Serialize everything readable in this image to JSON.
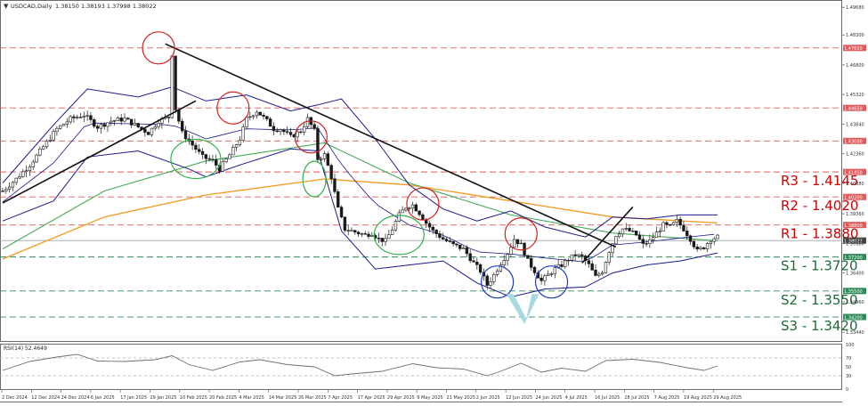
{
  "header": {
    "symbol": "USDCAD,Daily",
    "ohlc": "1.38150 1.38193 1.37998 1.38022"
  },
  "colors": {
    "hline": "#e05a5a",
    "support": "#2e8b57",
    "bb": "#1a1a8c",
    "ma_green": "#44aa55",
    "ma_orange": "#f39a1e",
    "trend": "#111111",
    "circle_red": "#d62020",
    "circle_green": "#32b04b",
    "circle_blue": "#1a3acc",
    "arrow": "#a8d8e0",
    "price_line": "#9aa4aa",
    "candle": "#1a1a1a",
    "rsi_line": "#707070"
  },
  "price_axis": {
    "min": 1.33,
    "max": 1.5,
    "ticks": [
      "1.49680",
      "1.48300",
      "1.46800",
      "1.45320",
      "1.43840",
      "1.42360",
      "1.40880",
      "1.39360",
      "1.37880",
      "1.36400",
      "1.34960",
      "1.33440"
    ],
    "current": "1.38022"
  },
  "levels": [
    {
      "value": 1.4765,
      "tag": "1.47650",
      "kind": "res"
    },
    {
      "value": 1.4465,
      "tag": "1.44650",
      "kind": "res"
    },
    {
      "value": 1.43,
      "tag": "1.43000",
      "kind": "res"
    },
    {
      "value": 1.4145,
      "tag": "1.41450",
      "kind": "res",
      "label": "R3 - 1.4145"
    },
    {
      "value": 1.402,
      "tag": "1.40200",
      "kind": "res",
      "label": "R2 - 1.4020"
    },
    {
      "value": 1.388,
      "tag": "1.38800",
      "kind": "res",
      "label": "R1 - 1.3880"
    },
    {
      "value": 1.372,
      "tag": "1.37200",
      "kind": "sup",
      "label": "S1 - 1.3720"
    },
    {
      "value": 1.355,
      "tag": "1.35500",
      "kind": "sup",
      "label": "S2 - 1.3550"
    },
    {
      "value": 1.342,
      "tag": "1.34200",
      "kind": "sup",
      "label": "S3 - 1.3420"
    }
  ],
  "rsi": {
    "label": "RSI(14) 52.4649",
    "ticks": [
      "100",
      "70",
      "50",
      "30",
      "0"
    ]
  },
  "x_axis": {
    "labels": [
      "2 Dec 2024",
      "12 Dec 2024",
      "24 Dec 2024",
      "6 Jan 2025",
      "17 Jan 2025",
      "29 Jan 2025",
      "10 Feb 2025",
      "20 Feb 2025",
      "4 Mar 2025",
      "14 Mar 2025",
      "26 Mar 2025",
      "7 Apr 2025",
      "17 Apr 2025",
      "29 Apr 2025",
      "9 May 2025",
      "21 May 2025",
      "2 Jun 2025",
      "12 Jun 2025",
      "24 Jun 2025",
      "4 Jul 2025",
      "16 Jul 2025",
      "28 Jul 2025",
      "7 Aug 2025",
      "19 Aug 2025",
      "29 Aug 2025"
    ]
  },
  "chart_data": {
    "type": "candlestick",
    "title": "USDCAD,Daily",
    "close_path": [
      [
        0,
        1.405
      ],
      [
        4,
        1.411
      ],
      [
        8,
        1.418
      ],
      [
        12,
        1.427
      ],
      [
        16,
        1.436
      ],
      [
        20,
        1.441
      ],
      [
        24,
        1.443
      ],
      [
        28,
        1.437
      ],
      [
        32,
        1.44
      ],
      [
        36,
        1.441
      ],
      [
        40,
        1.437
      ],
      [
        43,
        1.434
      ],
      [
        46,
        1.44
      ],
      [
        49,
        1.442
      ],
      [
        50,
        1.4735
      ],
      [
        51,
        1.446
      ],
      [
        53,
        1.434
      ],
      [
        56,
        1.428
      ],
      [
        59,
        1.422
      ],
      [
        62,
        1.42
      ],
      [
        64,
        1.416
      ],
      [
        67,
        1.423
      ],
      [
        70,
        1.431
      ],
      [
        72,
        1.441
      ],
      [
        75,
        1.445
      ],
      [
        78,
        1.44
      ],
      [
        80,
        1.436
      ],
      [
        82,
        1.436
      ],
      [
        85,
        1.432
      ],
      [
        88,
        1.435
      ],
      [
        90,
        1.441
      ],
      [
        92,
        1.435
      ],
      [
        93,
        1.421
      ],
      [
        95,
        1.423
      ],
      [
        97,
        1.412
      ],
      [
        99,
        1.396
      ],
      [
        101,
        1.386
      ],
      [
        103,
        1.385
      ],
      [
        105,
        1.384
      ],
      [
        107,
        1.383
      ],
      [
        109,
        1.384
      ],
      [
        111,
        1.381
      ],
      [
        113,
        1.38
      ],
      [
        115,
        1.386
      ],
      [
        117,
        1.393
      ],
      [
        119,
        1.397
      ],
      [
        121,
        1.398
      ],
      [
        123,
        1.394
      ],
      [
        125,
        1.389
      ],
      [
        127,
        1.385
      ],
      [
        130,
        1.381
      ],
      [
        133,
        1.378
      ],
      [
        136,
        1.376
      ],
      [
        139,
        1.369
      ],
      [
        141,
        1.365
      ],
      [
        143,
        1.358
      ],
      [
        145,
        1.363
      ],
      [
        147,
        1.369
      ],
      [
        149,
        1.374
      ],
      [
        151,
        1.381
      ],
      [
        153,
        1.378
      ],
      [
        155,
        1.37
      ],
      [
        157,
        1.365
      ],
      [
        159,
        1.36
      ],
      [
        161,
        1.363
      ],
      [
        163,
        1.366
      ],
      [
        165,
        1.368
      ],
      [
        167,
        1.371
      ],
      [
        169,
        1.373
      ],
      [
        171,
        1.372
      ],
      [
        173,
        1.368
      ],
      [
        175,
        1.362
      ],
      [
        177,
        1.365
      ],
      [
        179,
        1.375
      ],
      [
        181,
        1.383
      ],
      [
        183,
        1.386
      ],
      [
        185,
        1.385
      ],
      [
        187,
        1.383
      ],
      [
        189,
        1.378
      ],
      [
        191,
        1.38
      ],
      [
        193,
        1.384
      ],
      [
        195,
        1.388
      ],
      [
        197,
        1.387
      ],
      [
        199,
        1.39
      ],
      [
        201,
        1.386
      ],
      [
        203,
        1.381
      ],
      [
        205,
        1.375
      ],
      [
        207,
        1.377
      ],
      [
        209,
        1.381
      ],
      [
        211,
        1.382
      ]
    ],
    "ma_long": [
      [
        0,
        1.371
      ],
      [
        30,
        1.392
      ],
      [
        60,
        1.403
      ],
      [
        95,
        1.411
      ],
      [
        120,
        1.408
      ],
      [
        150,
        1.4
      ],
      [
        180,
        1.392
      ],
      [
        211,
        1.389
      ]
    ],
    "ma_mid": [
      [
        0,
        1.376
      ],
      [
        30,
        1.405
      ],
      [
        60,
        1.42
      ],
      [
        95,
        1.429
      ],
      [
        120,
        1.409
      ],
      [
        150,
        1.393
      ],
      [
        180,
        1.384
      ],
      [
        211,
        1.38
      ]
    ],
    "bb_upper": [
      [
        0,
        1.409
      ],
      [
        15,
        1.438
      ],
      [
        25,
        1.456
      ],
      [
        40,
        1.452
      ],
      [
        50,
        1.457
      ],
      [
        60,
        1.45
      ],
      [
        72,
        1.453
      ],
      [
        85,
        1.445
      ],
      [
        93,
        1.448
      ],
      [
        100,
        1.451
      ],
      [
        110,
        1.431
      ],
      [
        120,
        1.408
      ],
      [
        130,
        1.396
      ],
      [
        140,
        1.39
      ],
      [
        150,
        1.395
      ],
      [
        160,
        1.387
      ],
      [
        172,
        1.382
      ],
      [
        180,
        1.392
      ],
      [
        190,
        1.391
      ],
      [
        200,
        1.393
      ],
      [
        211,
        1.393
      ]
    ],
    "bb_lower": [
      [
        0,
        1.39
      ],
      [
        15,
        1.4
      ],
      [
        25,
        1.422
      ],
      [
        40,
        1.425
      ],
      [
        55,
        1.416
      ],
      [
        60,
        1.412
      ],
      [
        70,
        1.418
      ],
      [
        85,
        1.426
      ],
      [
        93,
        1.425
      ],
      [
        100,
        1.385
      ],
      [
        110,
        1.366
      ],
      [
        120,
        1.368
      ],
      [
        130,
        1.37
      ],
      [
        140,
        1.359
      ],
      [
        150,
        1.352
      ],
      [
        160,
        1.356
      ],
      [
        172,
        1.357
      ],
      [
        180,
        1.364
      ],
      [
        190,
        1.368
      ],
      [
        200,
        1.37
      ],
      [
        211,
        1.374
      ]
    ],
    "trendlines": [
      {
        "name": "uptrend",
        "from": [
          0,
          1.399
        ],
        "to": [
          57,
          1.45
        ]
      },
      {
        "name": "downtrend",
        "from": [
          48,
          1.4785
        ],
        "to": [
          181,
          1.377
        ]
      },
      {
        "name": "july-up",
        "from": [
          171,
          1.369
        ],
        "to": [
          186,
          1.397
        ]
      }
    ],
    "circles": [
      {
        "x": 46,
        "y": 1.4765,
        "color": "red"
      },
      {
        "x": 68,
        "y": 1.4465,
        "color": "red"
      },
      {
        "x": 91,
        "y": 1.432,
        "color": "red"
      },
      {
        "x": 124,
        "y": 1.3985,
        "color": "red"
      },
      {
        "x": 153,
        "y": 1.3835,
        "color": "red"
      },
      {
        "x": 57,
        "y": 1.421,
        "color": "green"
      },
      {
        "x": 92,
        "y": 1.411,
        "color": "green"
      },
      {
        "x": 117,
        "y": 1.383,
        "color": "green"
      },
      {
        "x": 146,
        "y": 1.3595,
        "color": "blue"
      },
      {
        "x": 162,
        "y": 1.3595,
        "color": "blue"
      }
    ],
    "arrows": [
      {
        "from_x": 150,
        "to_x": 157,
        "tip_x": 154,
        "y_top": 1.3535,
        "y_tip": 1.3385
      }
    ],
    "rsi_path": [
      [
        0,
        42
      ],
      [
        8,
        62
      ],
      [
        16,
        72
      ],
      [
        22,
        78
      ],
      [
        28,
        63
      ],
      [
        36,
        62
      ],
      [
        45,
        66
      ],
      [
        50,
        75
      ],
      [
        55,
        55
      ],
      [
        62,
        42
      ],
      [
        70,
        61
      ],
      [
        76,
        66
      ],
      [
        84,
        55
      ],
      [
        92,
        50
      ],
      [
        98,
        30
      ],
      [
        103,
        34
      ],
      [
        112,
        40
      ],
      [
        121,
        57
      ],
      [
        128,
        48
      ],
      [
        136,
        45
      ],
      [
        143,
        30
      ],
      [
        147,
        40
      ],
      [
        153,
        58
      ],
      [
        159,
        38
      ],
      [
        165,
        47
      ],
      [
        172,
        40
      ],
      [
        178,
        64
      ],
      [
        186,
        67
      ],
      [
        194,
        60
      ],
      [
        202,
        48
      ],
      [
        207,
        42
      ],
      [
        211,
        52
      ]
    ],
    "n_bars": 212
  }
}
